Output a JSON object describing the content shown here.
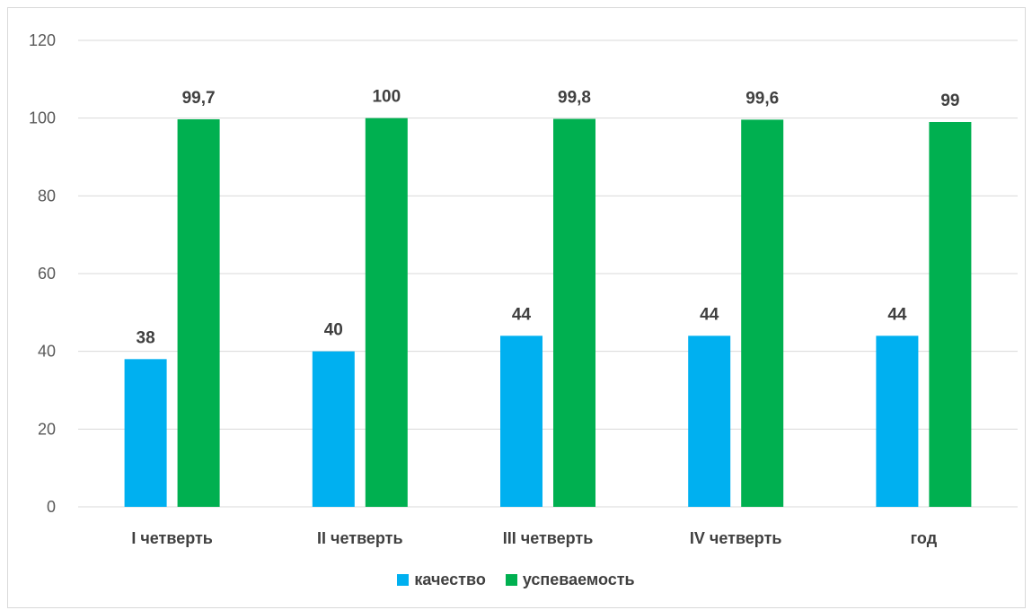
{
  "chart_data": {
    "type": "bar",
    "categories": [
      "I четверть",
      "II четверть",
      "III четверть",
      "IV четверть",
      "год"
    ],
    "series": [
      {
        "name": "качество",
        "values": [
          38,
          40,
          44,
          44,
          44
        ],
        "labels": [
          "38",
          "40",
          "44",
          "44",
          "44"
        ],
        "color": "#00b0f0"
      },
      {
        "name": "успеваемость",
        "values": [
          99.7,
          100,
          99.8,
          99.6,
          99
        ],
        "labels": [
          "99,7",
          "100",
          "99,8",
          "99,6",
          "99"
        ],
        "color": "#00b050"
      }
    ],
    "ylim": [
      0,
      120
    ],
    "yticks": [
      0,
      20,
      40,
      60,
      80,
      100,
      120
    ],
    "grid": true,
    "legend_position": "bottom",
    "gridline_color": "#d9d9d9"
  }
}
